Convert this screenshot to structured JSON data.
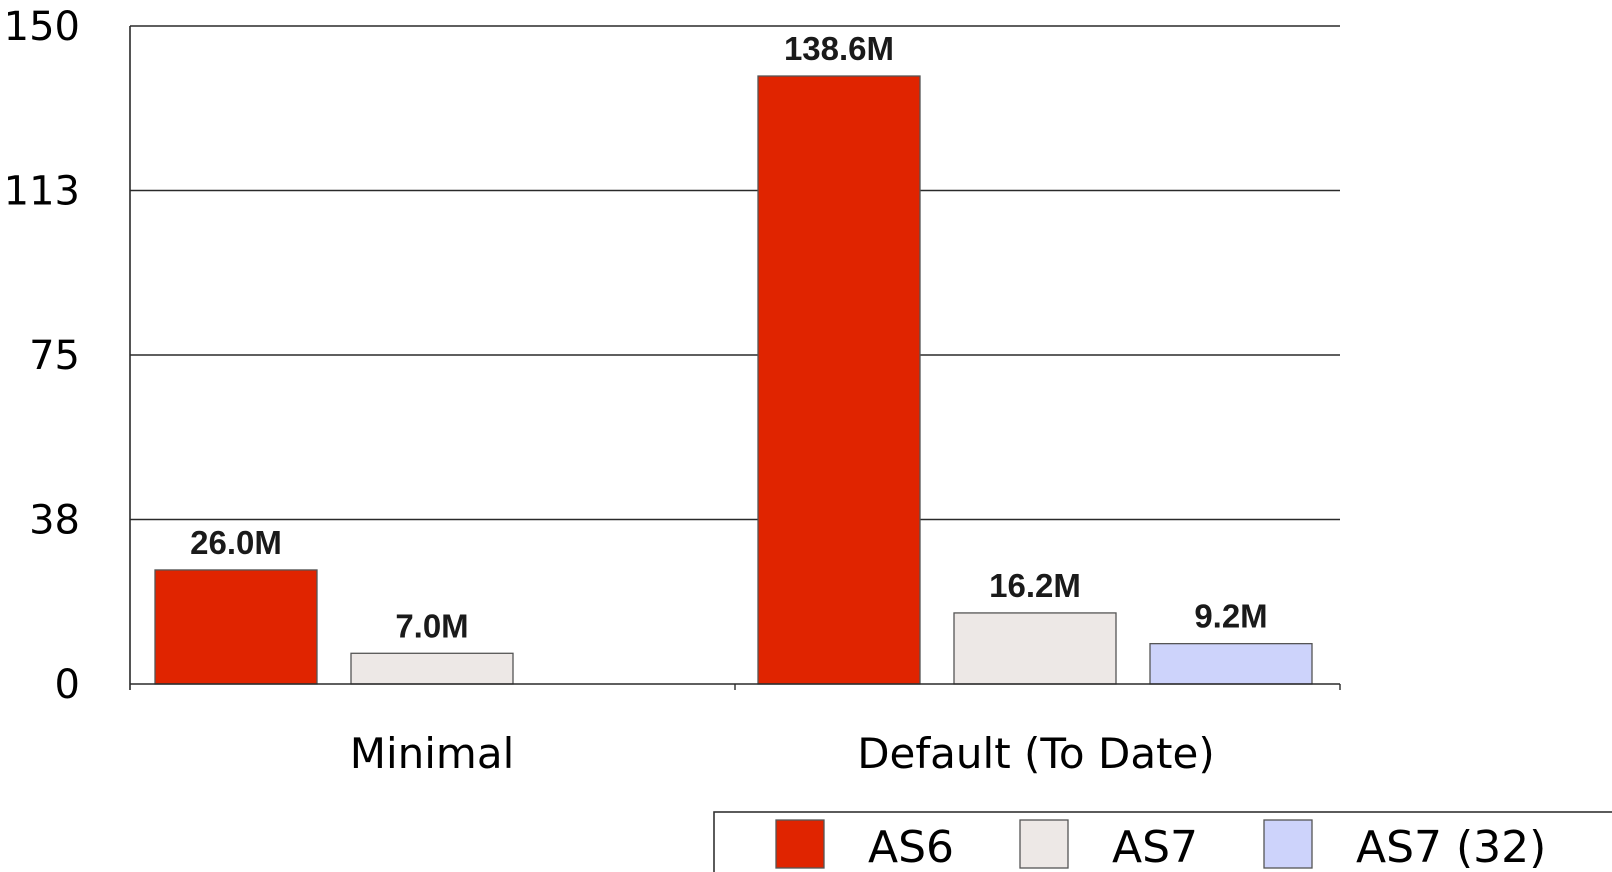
{
  "chart_data": {
    "type": "bar",
    "title": "",
    "xlabel": "",
    "ylabel": "",
    "ylim": [
      0,
      150
    ],
    "yticks": [
      {
        "value": 0,
        "label": "0"
      },
      {
        "value": 37.5,
        "label": "38"
      },
      {
        "value": 75,
        "label": "75"
      },
      {
        "value": 112.5,
        "label": "113"
      },
      {
        "value": 150,
        "label": "150"
      }
    ],
    "grid": true,
    "legend_position": "bottom-right",
    "categories": [
      "Minimal",
      "Default (To Date)"
    ],
    "series": [
      {
        "name": "AS6",
        "color": "#e02400",
        "values": [
          26.0,
          138.6
        ],
        "labels": [
          "26.0M",
          "138.6M"
        ]
      },
      {
        "name": "AS7",
        "color": "#ede8e6",
        "values": [
          7.0,
          16.2
        ],
        "labels": [
          "7.0M",
          "16.2M"
        ]
      },
      {
        "name": "AS7 (32)",
        "color": "#cdd3fb",
        "values": [
          null,
          9.2
        ],
        "labels": [
          null,
          "9.2M"
        ]
      }
    ]
  }
}
